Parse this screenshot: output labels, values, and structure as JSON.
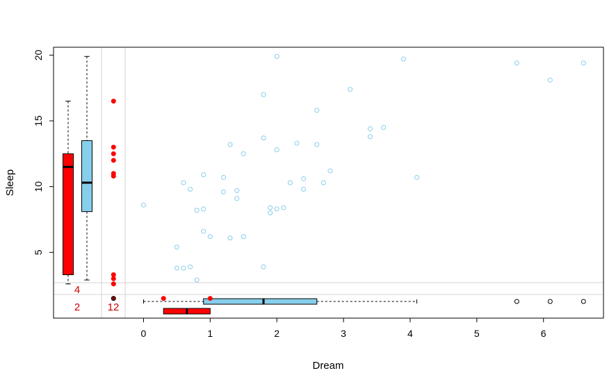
{
  "chart_data": {
    "type": "scatter",
    "xlabel": "Dream",
    "ylabel": "Sleep",
    "xlim": [
      -1.35,
      6.9
    ],
    "ylim": [
      0.0,
      20.6
    ],
    "x_ticks": [
      0,
      1,
      2,
      3,
      4,
      5,
      6
    ],
    "y_ticks": [
      5,
      10,
      15,
      20
    ],
    "colors": {
      "complete": "#87ceeb",
      "missing": "#ff0000",
      "both_missing": "#8b0000",
      "count_text": "#cc0000",
      "grid": "#d3d3d3"
    },
    "imputation_band_values": {
      "y_missing_row": 1.5,
      "x_missing_col": -0.45
    },
    "points": [
      {
        "x": 0.0,
        "y": 8.6
      },
      {
        "x": 0.5,
        "y": 5.4
      },
      {
        "x": 0.5,
        "y": 3.8
      },
      {
        "x": 0.6,
        "y": 10.3
      },
      {
        "x": 0.6,
        "y": 3.8
      },
      {
        "x": 0.7,
        "y": 9.8
      },
      {
        "x": 0.7,
        "y": 3.9
      },
      {
        "x": 0.8,
        "y": 8.2
      },
      {
        "x": 0.8,
        "y": 2.9
      },
      {
        "x": 0.9,
        "y": 10.9
      },
      {
        "x": 0.9,
        "y": 8.3
      },
      {
        "x": 0.9,
        "y": 6.6
      },
      {
        "x": 1.0,
        "y": 6.2
      },
      {
        "x": 1.2,
        "y": 10.7
      },
      {
        "x": 1.2,
        "y": 9.6
      },
      {
        "x": 1.3,
        "y": 13.2
      },
      {
        "x": 1.3,
        "y": 6.1
      },
      {
        "x": 1.4,
        "y": 9.7
      },
      {
        "x": 1.4,
        "y": 9.1
      },
      {
        "x": 1.5,
        "y": 12.5
      },
      {
        "x": 1.5,
        "y": 6.2
      },
      {
        "x": 1.8,
        "y": 17.0
      },
      {
        "x": 1.8,
        "y": 13.7
      },
      {
        "x": 1.8,
        "y": 3.9
      },
      {
        "x": 1.9,
        "y": 8.4
      },
      {
        "x": 1.9,
        "y": 8.0
      },
      {
        "x": 2.0,
        "y": 19.9
      },
      {
        "x": 2.0,
        "y": 12.8
      },
      {
        "x": 2.0,
        "y": 8.3
      },
      {
        "x": 2.1,
        "y": 8.4
      },
      {
        "x": 2.2,
        "y": 10.3
      },
      {
        "x": 2.3,
        "y": 13.3
      },
      {
        "x": 2.4,
        "y": 10.6
      },
      {
        "x": 2.4,
        "y": 9.8
      },
      {
        "x": 2.6,
        "y": 15.8
      },
      {
        "x": 2.6,
        "y": 13.2
      },
      {
        "x": 2.7,
        "y": 10.3
      },
      {
        "x": 2.8,
        "y": 11.2
      },
      {
        "x": 3.1,
        "y": 17.4
      },
      {
        "x": 3.4,
        "y": 14.4
      },
      {
        "x": 3.4,
        "y": 13.8
      },
      {
        "x": 3.6,
        "y": 14.5
      },
      {
        "x": 3.9,
        "y": 19.7
      },
      {
        "x": 4.1,
        "y": 10.7
      },
      {
        "x": 5.6,
        "y": 19.4
      },
      {
        "x": 6.1,
        "y": 18.1
      },
      {
        "x": 6.6,
        "y": 19.4
      }
    ],
    "missing_x_points": [
      {
        "y": 16.5
      },
      {
        "y": 13.0
      },
      {
        "y": 12.5
      },
      {
        "y": 12.0
      },
      {
        "y": 11.0
      },
      {
        "y": 10.8
      },
      {
        "y": 3.3
      },
      {
        "y": 3.0
      },
      {
        "y": 2.6
      }
    ],
    "missing_y_points": [
      {
        "x": 0.3
      },
      {
        "x": 1.0
      }
    ],
    "both_missing_point": true,
    "counts": {
      "missing_y": "4",
      "missing_x": "12",
      "missing_both": "2"
    },
    "boxplots": {
      "y_observed_x": {
        "min": 2.6,
        "q1": 3.3,
        "median": 11.5,
        "q3": 12.5,
        "max": 16.5
      },
      "y_all": {
        "min": 2.9,
        "q1": 8.1,
        "median": 10.3,
        "q3": 13.5,
        "max": 19.9
      },
      "x_all": {
        "min": 0.0,
        "q1": 0.9,
        "median": 1.8,
        "q3": 2.6,
        "max": 4.1,
        "outliers": [
          5.6,
          6.1,
          6.6
        ]
      },
      "x_observed_y": {
        "q1": 0.3,
        "median": 0.65,
        "q3": 1.0
      }
    }
  }
}
